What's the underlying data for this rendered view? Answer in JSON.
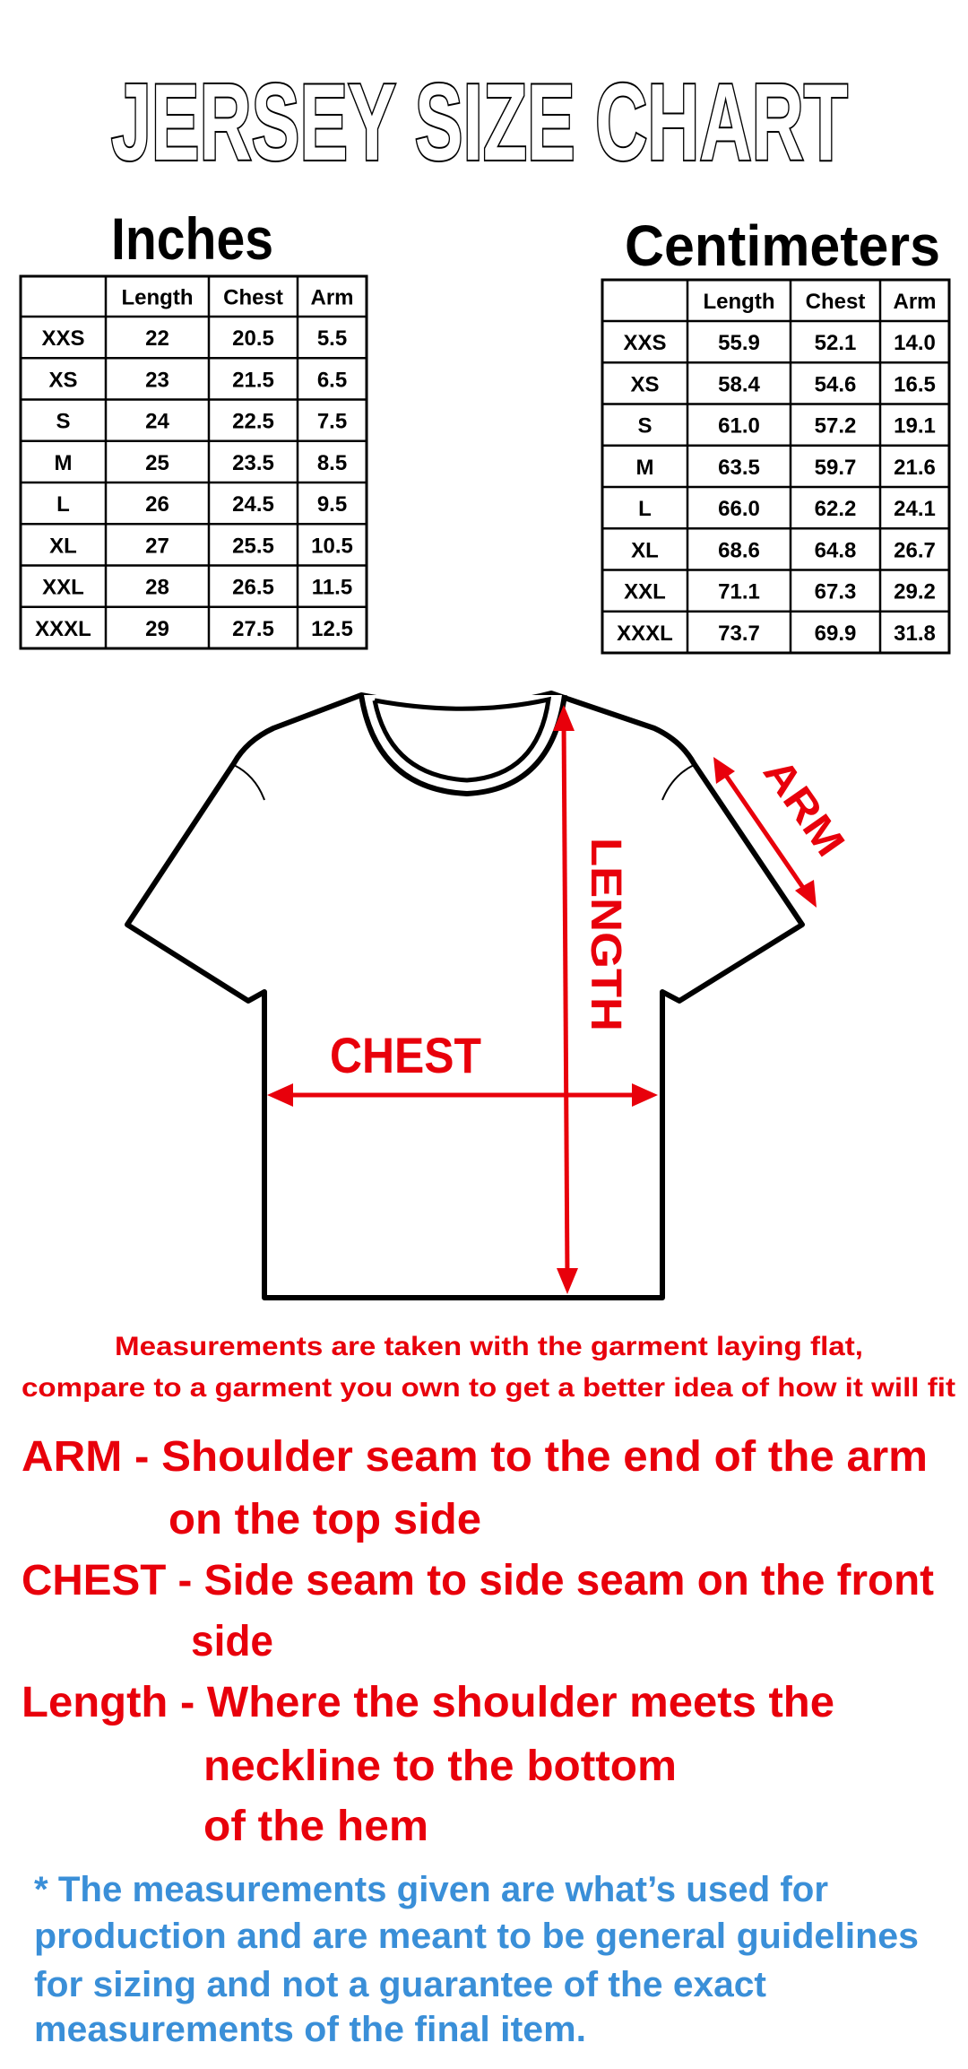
{
  "title": "JERSEY SIZE CHART",
  "tables": [
    {
      "heading": "Inches",
      "columns": [
        "",
        "Length",
        "Chest",
        "Arm"
      ],
      "rows": [
        [
          "XXS",
          "22",
          "20.5",
          "5.5"
        ],
        [
          "XS",
          "23",
          "21.5",
          "6.5"
        ],
        [
          "S",
          "24",
          "22.5",
          "7.5"
        ],
        [
          "M",
          "25",
          "23.5",
          "8.5"
        ],
        [
          "L",
          "26",
          "24.5",
          "9.5"
        ],
        [
          "XL",
          "27",
          "25.5",
          "10.5"
        ],
        [
          "XXL",
          "28",
          "26.5",
          "11.5"
        ],
        [
          "XXXL",
          "29",
          "27.5",
          "12.5"
        ]
      ]
    },
    {
      "heading": "Centimeters",
      "columns": [
        "",
        "Length",
        "Chest",
        "Arm"
      ],
      "rows": [
        [
          "XXS",
          "55.9",
          "52.1",
          "14.0"
        ],
        [
          "XS",
          "58.4",
          "54.6",
          "16.5"
        ],
        [
          "S",
          "61.0",
          "57.2",
          "19.1"
        ],
        [
          "M",
          "63.5",
          "59.7",
          "21.6"
        ],
        [
          "L",
          "66.0",
          "62.2",
          "24.1"
        ],
        [
          "XL",
          "68.6",
          "64.8",
          "26.7"
        ],
        [
          "XXL",
          "71.1",
          "67.3",
          "29.2"
        ],
        [
          "XXXL",
          "73.7",
          "69.9",
          "31.8"
        ]
      ]
    }
  ],
  "diagram": {
    "chest_label": "CHEST",
    "length_label": "LENGTH",
    "arm_label": "ARM"
  },
  "note_lines": [
    "Measurements are taken with the garment laying flat,",
    "compare to a garment you own to get a better idea of how it will fit"
  ],
  "separator": "-",
  "definitions": [
    {
      "term": "ARM",
      "lines": [
        "Shoulder seam to the end of the arm",
        "on the top side"
      ]
    },
    {
      "term": "CHEST",
      "lines": [
        "Side seam to side seam on the front",
        "side"
      ]
    },
    {
      "term": "Length",
      "lines": [
        "Where the shoulder meets the",
        "neckline to the bottom",
        "of the hem"
      ]
    }
  ],
  "disclaimer_lines": [
    "* The measurements given are what’s used for",
    "production and are meant to be general guidelines",
    "for sizing and not a guarantee of the exact",
    "measurements of the final item."
  ],
  "colors": {
    "red": "#e8000b",
    "blue": "#3a8fd8",
    "text": "#000000"
  }
}
